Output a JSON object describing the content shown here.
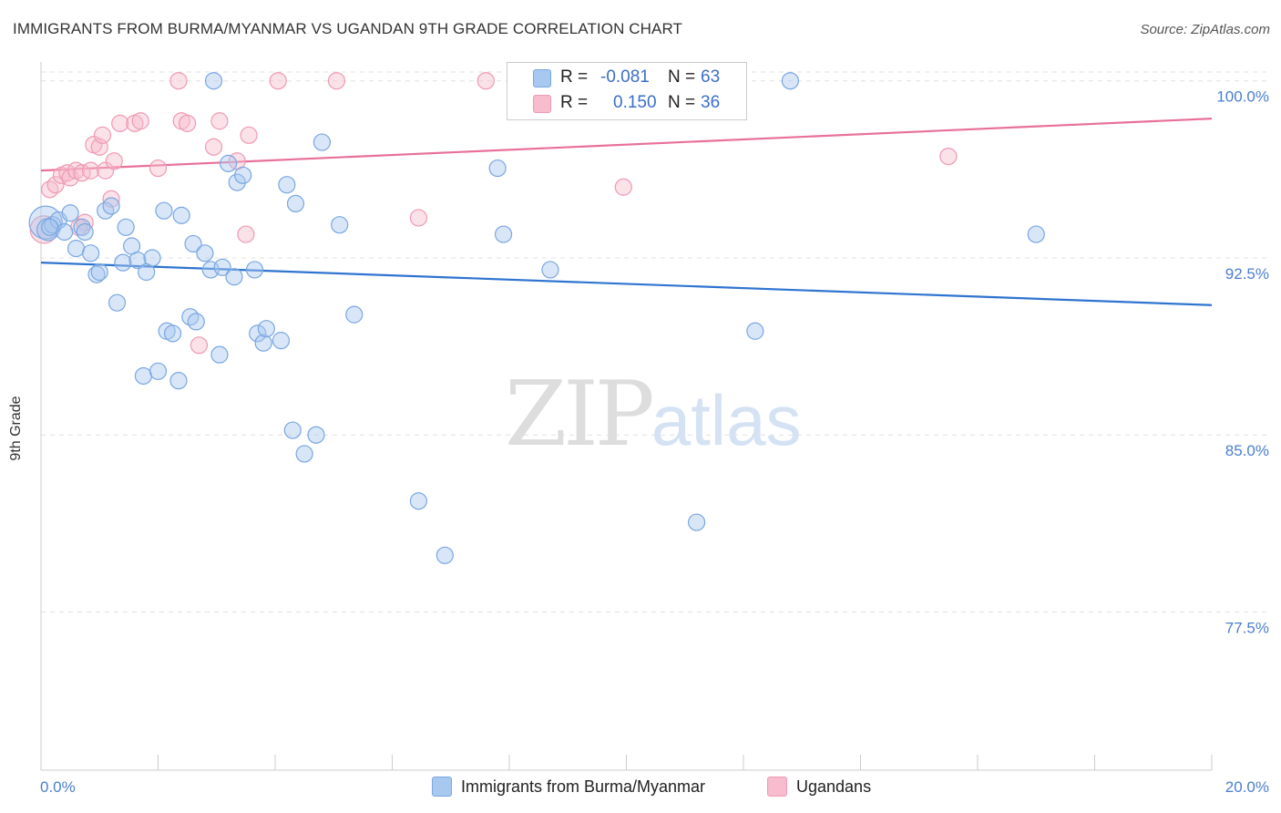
{
  "title": "IMMIGRANTS FROM BURMA/MYANMAR VS UGANDAN 9TH GRADE CORRELATION CHART",
  "source": "Source: ZipAtlas.com",
  "watermark": {
    "zip": "ZIP",
    "atlas": "atlas"
  },
  "legend": {
    "series1": {
      "r_label": "R =",
      "r_value": "-0.081",
      "n_label": "N =",
      "n_value": "63"
    },
    "series2": {
      "r_label": "R =",
      "r_value": "0.150",
      "n_label": "N =",
      "n_value": "36"
    }
  },
  "bottom_legend": {
    "series1": "Immigrants from Burma/Myanmar",
    "series2": "Ugandans"
  },
  "colors": {
    "blue_fill": "#a9c8f0",
    "blue_stroke": "#7aa7e0",
    "blue_line": "#2f74d0",
    "pink_fill": "#f7bccd",
    "pink_stroke": "#ee9ab4",
    "pink_line": "#e8709a",
    "grid": "#e0e0e0",
    "axis_label": "#4a7fd0"
  },
  "chart_data": {
    "type": "scatter",
    "title": "IMMIGRANTS FROM BURMA/MYANMAR VS UGANDAN 9TH GRADE CORRELATION CHART",
    "xlabel": "",
    "ylabel": "9th Grade",
    "xlim": [
      0,
      20
    ],
    "ylim": [
      70.8,
      100.8
    ],
    "x_tick_labels": [
      "0.0%",
      "20.0%"
    ],
    "y_ticks": [
      77.5,
      85.0,
      92.5,
      100.0
    ],
    "y_tick_labels": [
      "77.5%",
      "85.0%",
      "92.5%",
      "100.0%"
    ],
    "grid": true,
    "series": [
      {
        "name": "Immigrants from Burma/Myanmar",
        "R": -0.081,
        "N": 63,
        "trend": {
          "x": [
            0,
            20
          ],
          "y": [
            92.3,
            90.5
          ]
        },
        "points": [
          [
            0.08,
            94.0
          ],
          [
            0.12,
            93.7
          ],
          [
            0.2,
            93.9
          ],
          [
            0.3,
            94.1
          ],
          [
            0.4,
            93.6
          ],
          [
            0.5,
            94.4
          ],
          [
            0.6,
            92.9
          ],
          [
            0.7,
            93.8
          ],
          [
            0.75,
            93.6
          ],
          [
            0.85,
            92.7
          ],
          [
            0.95,
            91.8
          ],
          [
            1.0,
            91.9
          ],
          [
            1.1,
            94.5
          ],
          [
            1.2,
            94.7
          ],
          [
            1.3,
            90.6
          ],
          [
            1.4,
            92.3
          ],
          [
            1.45,
            93.8
          ],
          [
            1.55,
            93.0
          ],
          [
            1.65,
            92.4
          ],
          [
            1.75,
            87.5
          ],
          [
            1.8,
            91.9
          ],
          [
            1.9,
            92.5
          ],
          [
            2.0,
            87.7
          ],
          [
            2.1,
            94.5
          ],
          [
            2.15,
            89.4
          ],
          [
            2.25,
            89.3
          ],
          [
            2.35,
            87.3
          ],
          [
            2.4,
            94.3
          ],
          [
            2.55,
            90.0
          ],
          [
            2.6,
            93.1
          ],
          [
            2.65,
            89.8
          ],
          [
            2.8,
            92.7
          ],
          [
            2.9,
            92.0
          ],
          [
            2.95,
            100.0
          ],
          [
            3.05,
            88.4
          ],
          [
            3.1,
            92.1
          ],
          [
            3.2,
            96.5
          ],
          [
            3.3,
            91.7
          ],
          [
            3.35,
            95.7
          ],
          [
            3.45,
            96.0
          ],
          [
            3.65,
            92.0
          ],
          [
            3.7,
            89.3
          ],
          [
            3.8,
            88.9
          ],
          [
            3.85,
            89.5
          ],
          [
            4.1,
            89.0
          ],
          [
            4.2,
            95.6
          ],
          [
            4.3,
            85.2
          ],
          [
            4.35,
            94.8
          ],
          [
            4.5,
            84.2
          ],
          [
            4.7,
            85.0
          ],
          [
            4.8,
            97.4
          ],
          [
            5.1,
            93.9
          ],
          [
            5.35,
            90.1
          ],
          [
            6.45,
            82.2
          ],
          [
            6.9,
            79.9
          ],
          [
            7.8,
            96.3
          ],
          [
            7.9,
            93.5
          ],
          [
            8.7,
            92.0
          ],
          [
            11.2,
            81.3
          ],
          [
            12.2,
            89.4
          ],
          [
            12.8,
            100.0
          ],
          [
            17.0,
            93.5
          ],
          [
            0.15,
            93.8
          ]
        ],
        "sizes": [
          36,
          24,
          18,
          18,
          18,
          18,
          18,
          18,
          18,
          18,
          18,
          18,
          18,
          18,
          18,
          18,
          18,
          18,
          18,
          18,
          18,
          18,
          18,
          18,
          18,
          18,
          18,
          18,
          18,
          18,
          18,
          18,
          18,
          18,
          18,
          18,
          18,
          18,
          18,
          18,
          18,
          18,
          18,
          18,
          18,
          18,
          18,
          18,
          18,
          18,
          18,
          18,
          18,
          18,
          18,
          18,
          18,
          18,
          18,
          18,
          18,
          18,
          18
        ]
      },
      {
        "name": "Ugandans",
        "R": 0.15,
        "N": 36,
        "trend": {
          "x": [
            0,
            20
          ],
          "y": [
            96.2,
            98.4
          ]
        },
        "points": [
          [
            0.05,
            93.7
          ],
          [
            0.15,
            95.4
          ],
          [
            0.25,
            95.6
          ],
          [
            0.35,
            96.0
          ],
          [
            0.45,
            96.1
          ],
          [
            0.5,
            95.9
          ],
          [
            0.6,
            96.2
          ],
          [
            0.7,
            96.1
          ],
          [
            0.75,
            94.0
          ],
          [
            0.85,
            96.2
          ],
          [
            0.9,
            97.3
          ],
          [
            1.0,
            97.2
          ],
          [
            1.05,
            97.7
          ],
          [
            1.1,
            96.2
          ],
          [
            1.2,
            95.0
          ],
          [
            1.25,
            96.6
          ],
          [
            1.35,
            98.2
          ],
          [
            1.6,
            98.2
          ],
          [
            1.7,
            98.3
          ],
          [
            2.0,
            96.3
          ],
          [
            2.35,
            100.0
          ],
          [
            2.4,
            98.3
          ],
          [
            2.5,
            98.2
          ],
          [
            2.7,
            88.8
          ],
          [
            2.95,
            97.2
          ],
          [
            3.05,
            98.3
          ],
          [
            3.35,
            96.6
          ],
          [
            3.5,
            93.5
          ],
          [
            3.55,
            97.7
          ],
          [
            4.05,
            100.0
          ],
          [
            5.05,
            100.0
          ],
          [
            6.45,
            94.2
          ],
          [
            7.6,
            100.0
          ],
          [
            9.95,
            95.5
          ],
          [
            15.5,
            96.8
          ],
          [
            0.65,
            93.8
          ]
        ],
        "sizes": [
          30,
          18,
          18,
          18,
          18,
          18,
          18,
          18,
          18,
          18,
          18,
          18,
          18,
          18,
          18,
          18,
          18,
          18,
          18,
          18,
          18,
          18,
          18,
          18,
          18,
          18,
          18,
          18,
          18,
          18,
          18,
          18,
          18,
          18,
          18,
          18
        ]
      }
    ]
  }
}
